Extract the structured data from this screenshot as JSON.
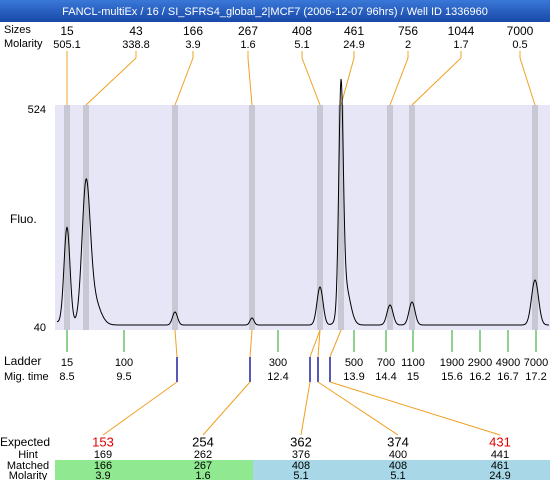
{
  "title": "FANCL-multiEx / 16 / SI_SFRS4_global_2|MCF7 (2006-12-07 96hrs) / Well ID 1336960",
  "peaks": {
    "size_label": "Sizes",
    "molarity_label": "Molarity",
    "items": [
      {
        "size": 15,
        "molarity": 505.1
      },
      {
        "size": 43,
        "molarity": 338.8
      },
      {
        "size": 166,
        "molarity": 3.9
      },
      {
        "size": 267,
        "molarity": 1.6
      },
      {
        "size": 408,
        "molarity": 5.1
      },
      {
        "size": 461,
        "molarity": 24.9
      },
      {
        "size": 756,
        "molarity": 2
      },
      {
        "size": 1044,
        "molarity": 1.7
      },
      {
        "size": 7000,
        "molarity": 0.5
      }
    ]
  },
  "axis": {
    "label": "Fluo.",
    "top": 524,
    "bottom": 40
  },
  "ladder": {
    "label": "Ladder",
    "time_label": "Mig. time",
    "items": [
      {
        "size": 15,
        "time": 8.5
      },
      {
        "size": 100,
        "time": 9.5
      },
      {
        "size": 300,
        "time": 12.4
      },
      {
        "size": 500,
        "time": 13.9
      },
      {
        "size": 700,
        "time": 14.4
      },
      {
        "size": 1100,
        "time": 15
      },
      {
        "size": 1900,
        "time": 15.6
      },
      {
        "size": 2900,
        "time": 16.2
      },
      {
        "size": 4900,
        "time": 16.7
      },
      {
        "size": 7000,
        "time": 17.2
      }
    ]
  },
  "expected": {
    "labels": [
      "Expected",
      "Hint",
      "Matched",
      "Molarity"
    ],
    "items": [
      {
        "expected": 153,
        "color": "#e00000",
        "hint": 169,
        "matched": 166,
        "molarity": 3.9,
        "band": "#90e890"
      },
      {
        "expected": 254,
        "color": "#000000",
        "hint": 262,
        "matched": 267,
        "molarity": 1.6,
        "band": "#90e890"
      },
      {
        "expected": 362,
        "color": "#000000",
        "hint": 376,
        "matched": 408,
        "molarity": 5.1,
        "band": "#a8d8e8"
      },
      {
        "expected": 374,
        "color": "#000000",
        "hint": 400,
        "matched": 408,
        "molarity": 5.1,
        "band": "#a8d8e8"
      },
      {
        "expected": 431,
        "color": "#e00000",
        "hint": 441,
        "matched": 461,
        "molarity": 24.9,
        "band": "#a8d8e8"
      }
    ]
  }
}
